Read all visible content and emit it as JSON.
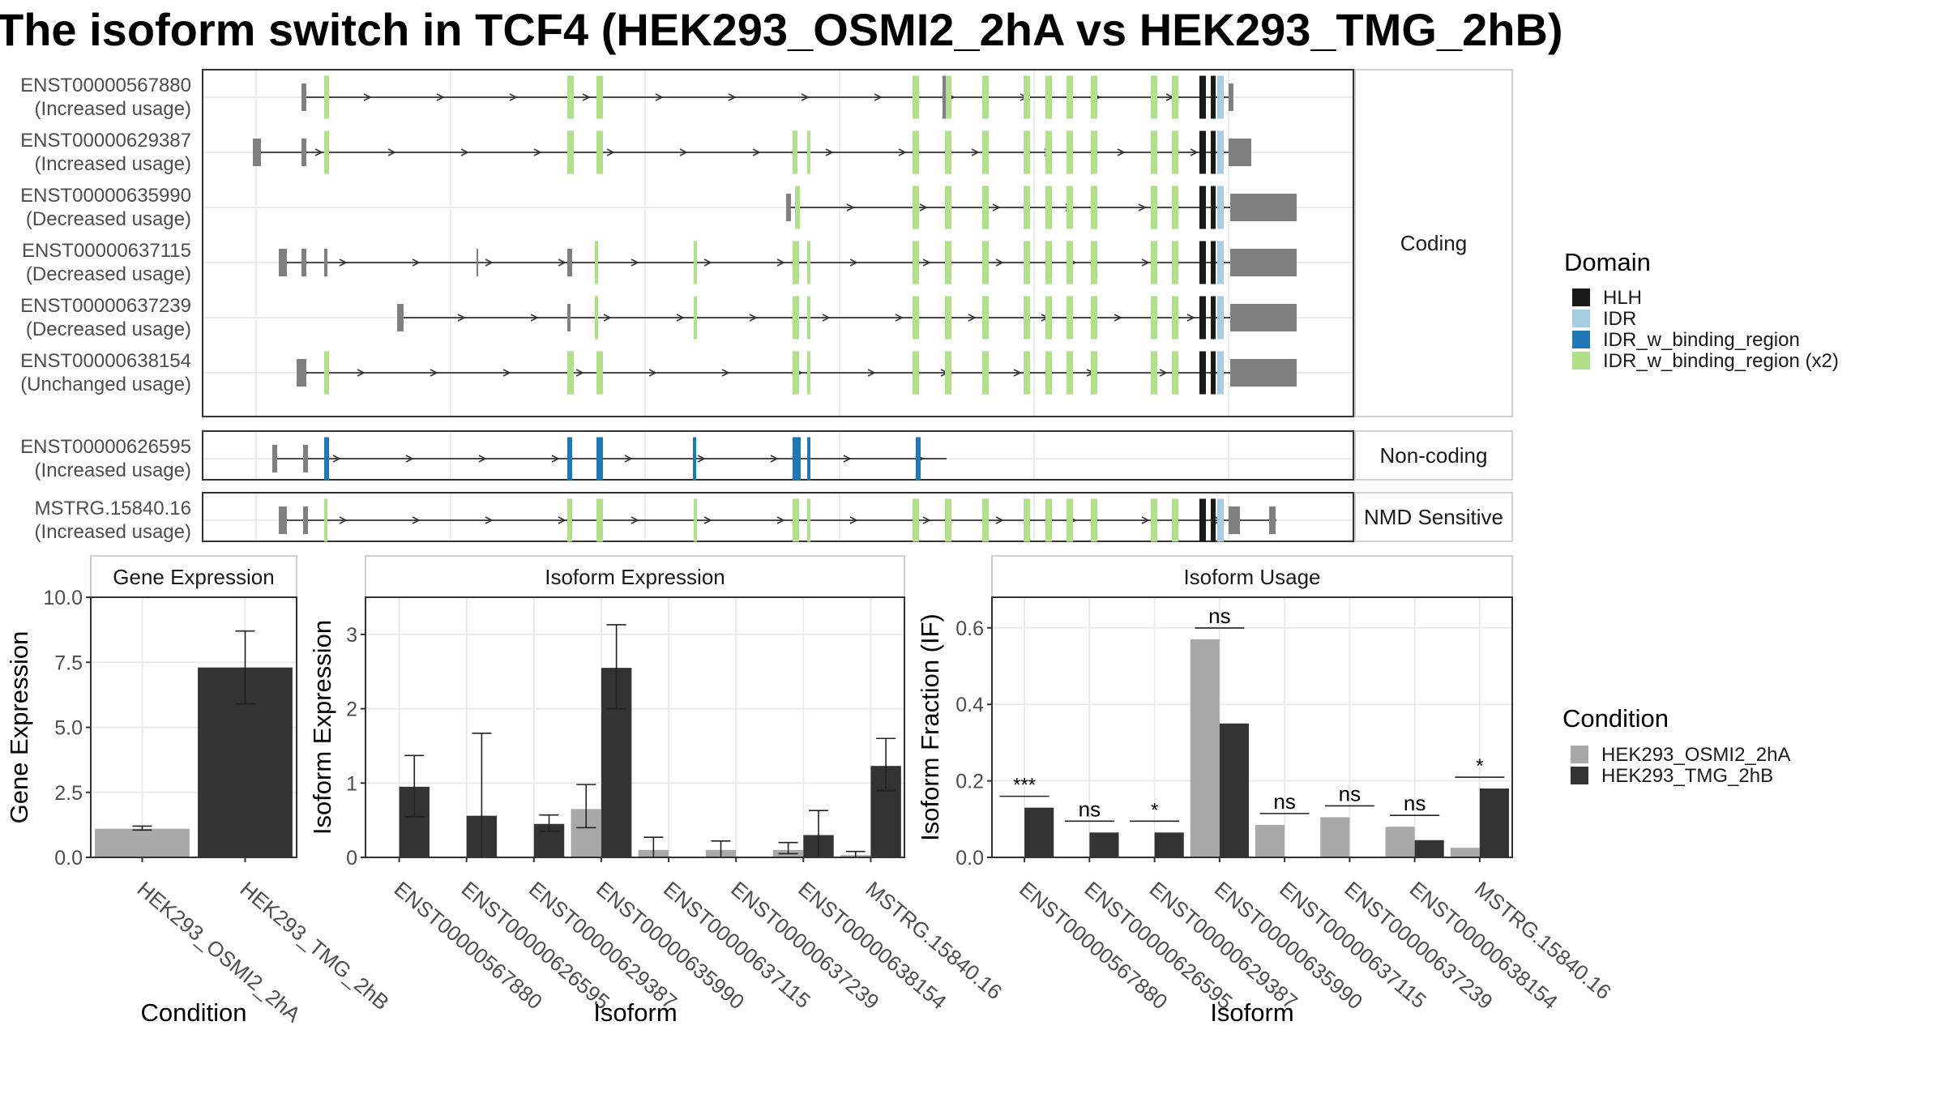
{
  "title": "The isoform switch in TCF4 (HEK293_OSMI2_2hA vs HEK293_TMG_2hB)",
  "colors": {
    "HLH": "#1a1a1a",
    "IDR": "#a6cee3",
    "IDR_w_binding_region": "#1f78b4",
    "IDR_w_binding_region (x2)": "#b2df8a",
    "exon": "#808080",
    "condA": "#a9a9a9",
    "condB": "#333333"
  },
  "structure": {
    "facets": [
      {
        "label": "Coding",
        "rows": [
          "ENST00000567880",
          "ENST00000629387",
          "ENST00000635990",
          "ENST00000637115",
          "ENST00000637239",
          "ENST00000638154"
        ]
      },
      {
        "label": "Non-coding",
        "rows": [
          "ENST00000626595"
        ]
      },
      {
        "label": "NMD Sensitive",
        "rows": [
          "MSTRG.15840.16"
        ]
      }
    ],
    "isoforms": [
      {
        "id": "ENST00000567880",
        "usage": "(Increased usage)"
      },
      {
        "id": "ENST00000629387",
        "usage": "(Increased usage)"
      },
      {
        "id": "ENST00000635990",
        "usage": "(Decreased usage)"
      },
      {
        "id": "ENST00000637115",
        "usage": "(Decreased usage)"
      },
      {
        "id": "ENST00000637239",
        "usage": "(Decreased usage)"
      },
      {
        "id": "ENST00000638154",
        "usage": "(Unchanged usage)"
      },
      {
        "id": "ENST00000626595",
        "usage": "(Increased usage)"
      },
      {
        "id": "MSTRG.15840.16",
        "usage": "(Increased usage)"
      }
    ]
  },
  "legends": {
    "domain_title": "Domain",
    "domain_items": [
      "HLH",
      "IDR",
      "IDR_w_binding_region",
      "IDR_w_binding_region (x2)"
    ],
    "condition_title": "Condition",
    "condition_items": [
      "HEK293_OSMI2_2hA",
      "HEK293_TMG_2hB"
    ]
  },
  "chart_data": [
    {
      "type": "bar",
      "title": "Gene Expression",
      "xlabel": "Condition",
      "ylabel": "Gene Expression",
      "ylim": [
        0,
        10
      ],
      "yticks": [
        "0.0",
        "2.5",
        "5.0",
        "7.5",
        "10.0"
      ],
      "categories": [
        "HEK293_OSMI2_2hA",
        "HEK293_TMG_2hB"
      ],
      "values": [
        1.1,
        7.3
      ],
      "err_low": [
        1.05,
        5.9
      ],
      "err_high": [
        1.2,
        8.7
      ]
    },
    {
      "type": "bar",
      "title": "Isoform Expression",
      "xlabel": "Isoform",
      "ylabel": "Isoform Expression",
      "ylim": [
        0,
        3.5
      ],
      "yticks": [
        "0",
        "1",
        "2",
        "3"
      ],
      "categories": [
        "ENST00000567880",
        "ENST00000626595",
        "ENST00000629387",
        "ENST00000635990",
        "ENST00000637115",
        "ENST00000637239",
        "ENST00000638154",
        "MSTRG.15840.16"
      ],
      "series": [
        {
          "name": "HEK293_OSMI2_2hA",
          "values": [
            0.0,
            0.0,
            0.0,
            0.65,
            0.1,
            0.1,
            0.1,
            0.03
          ],
          "err_low": [
            0.0,
            0.0,
            0.0,
            0.4,
            0.0,
            0.0,
            0.05,
            0.0
          ],
          "err_high": [
            0.0,
            0.0,
            0.0,
            0.98,
            0.27,
            0.22,
            0.2,
            0.08
          ]
        },
        {
          "name": "HEK293_TMG_2hB",
          "values": [
            0.95,
            0.56,
            0.45,
            2.55,
            0.0,
            0.0,
            0.3,
            1.23
          ],
          "err_low": [
            0.55,
            0.0,
            0.35,
            2.0,
            0.0,
            0.0,
            0.0,
            0.9
          ],
          "err_high": [
            1.37,
            1.67,
            0.57,
            3.13,
            0.0,
            0.0,
            0.63,
            1.6
          ]
        }
      ]
    },
    {
      "type": "bar",
      "title": "Isoform Usage",
      "xlabel": "Isoform",
      "ylabel": "Isoform Fraction (IF)",
      "ylim": [
        0,
        0.68
      ],
      "yticks": [
        "0.0",
        "0.2",
        "0.4",
        "0.6"
      ],
      "categories": [
        "ENST00000567880",
        "ENST00000626595",
        "ENST00000629387",
        "ENST00000635990",
        "ENST00000637115",
        "ENST00000637239",
        "ENST00000638154",
        "MSTRG.15840.16"
      ],
      "series": [
        {
          "name": "HEK293_OSMI2_2hA",
          "values": [
            0.0,
            0.0,
            0.0,
            0.57,
            0.085,
            0.105,
            0.08,
            0.025
          ]
        },
        {
          "name": "HEK293_TMG_2hB",
          "values": [
            0.13,
            0.065,
            0.065,
            0.35,
            0.0,
            0.0,
            0.045,
            0.18
          ]
        }
      ],
      "significance": [
        "***",
        "ns",
        "*",
        "ns",
        "ns",
        "ns",
        "ns",
        "*"
      ]
    }
  ]
}
